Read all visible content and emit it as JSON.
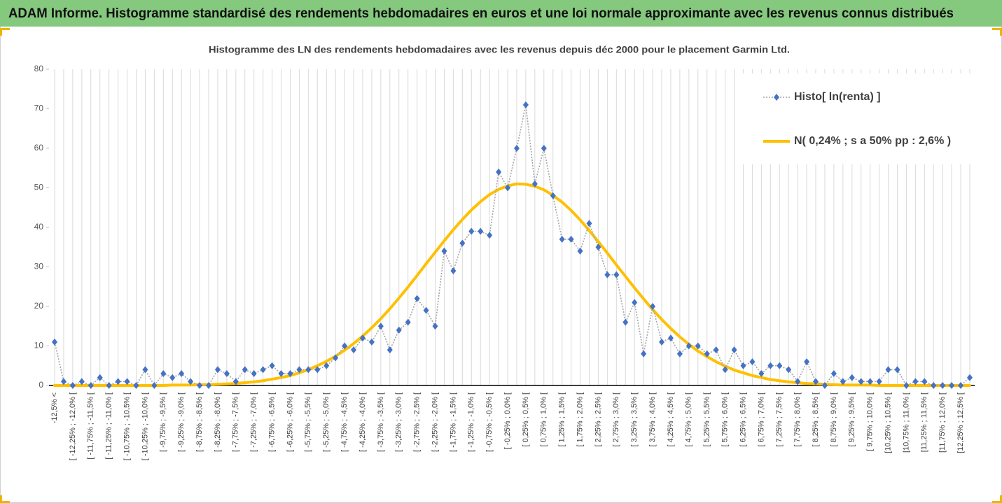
{
  "chart_data": {
    "type": "line",
    "title": "ADAM Informe. Histogramme standardisé des rendements hebdomadaires en euros et une loi normale approximante avec les revenus connus distribués",
    "subtitle": "Histogramme des LN des rendements hebdomadaires avec les revenus depuis déc 2000 pour le placement Garmin Ltd.",
    "categories": [
      "-12,5% <",
      null,
      "[ -12,25% ; -12,0% [",
      null,
      "[ -11,75% ; -11,5% [",
      null,
      "[ -11,25% ; -11,0% [",
      null,
      "[ -10,75% ; -10,5% [",
      null,
      "[ -10,25% ; -10,0% [",
      null,
      "[ -9,75% ; -9,5% [",
      null,
      "[ -9,25% ; -9,0% [",
      null,
      "[ -8,75% ; -8,5% [",
      null,
      "[ -8,25% ; -8,0% [",
      null,
      "[ -7,75% ; -7,5% [",
      null,
      "[ -7,25% ; -7,0% [",
      null,
      "[ -6,75% ; -6,5% [",
      null,
      "[ -6,25% ; -6,0% [",
      null,
      "[ -5,75% ; -5,5% [",
      null,
      "[ -5,25% ; -5,0% [",
      null,
      "[ -4,75% ; -4,5% [",
      null,
      "[ -4,25% ; -4,0% [",
      null,
      "[ -3,75% ; -3,5% [",
      null,
      "[ -3,25% ; -3,0% [",
      null,
      "[ -2,75% ; -2,5% [",
      null,
      "[ -2,25% ; -2,0% [",
      null,
      "[ -1,75% ; -1,5% [",
      null,
      "[ -1,25% ; -1,0% [",
      null,
      "[ -0,75% ; -0,5% [",
      null,
      "[ -0,25% ; 0,0% [",
      null,
      "[ 0,25% ; 0,5% [",
      null,
      "[ 0,75% ; 1,0% [",
      null,
      "[ 1,25% ; 1,5% [",
      null,
      "[ 1,75% ; 2,0% [",
      null,
      "[ 2,25% ; 2,5% [",
      null,
      "[ 2,75% ; 3,0% [",
      null,
      "[ 3,25% ; 3,5% [",
      null,
      "[ 3,75% ; 4,0% [",
      null,
      "[ 4,25% ; 4,5% [",
      null,
      "[ 4,75% ; 5,0% [",
      null,
      "[ 5,25% ; 5,5% [",
      null,
      "[ 5,75% ; 6,0% [",
      null,
      "[ 6,25% ; 6,5% [",
      null,
      "[ 6,75% ; 7,0% [",
      null,
      "[ 7,25% ; 7,5% [",
      null,
      "[ 7,75% ; 8,0% [",
      null,
      "[ 8,25% ; 8,5% [",
      null,
      "[ 8,75% ; 9,0% [",
      null,
      "[ 9,25% ; 9,5% [",
      null,
      "[ 9,75% ; 10,0% [",
      null,
      "[10,25% ; 10,5% [",
      null,
      "[10,75% ; 11,0% [",
      null,
      "[11,25% ; 11,5% [",
      null,
      "[11,75% ; 12,0% [",
      null,
      "[12,25% ; 12,5% [",
      null
    ],
    "series": [
      {
        "name": "Histo[ ln(renta) ]",
        "color": "#4472c4",
        "line_color": "#a5a5a5",
        "line_style": "dotted",
        "marker": "diamond",
        "values": [
          11,
          1,
          0,
          1,
          0,
          2,
          0,
          1,
          1,
          0,
          4,
          0,
          3,
          2,
          3,
          1,
          0,
          0,
          4,
          3,
          1,
          4,
          3,
          4,
          5,
          3,
          3,
          4,
          4,
          4,
          5,
          7,
          10,
          9,
          12,
          11,
          15,
          9,
          14,
          16,
          22,
          19,
          15,
          34,
          29,
          36,
          39,
          39,
          38,
          54,
          50,
          60,
          71,
          51,
          60,
          48,
          37,
          37,
          34,
          41,
          35,
          28,
          28,
          16,
          21,
          8,
          20,
          11,
          12,
          8,
          10,
          10,
          8,
          9,
          4,
          9,
          5,
          6,
          3,
          5,
          5,
          4,
          1,
          6,
          1,
          0,
          3,
          1,
          2,
          1,
          1,
          1,
          4,
          4,
          0,
          1,
          1,
          0,
          0,
          0,
          0,
          2
        ]
      },
      {
        "name": "N( 0,24% ; s a 50% pp : 2,6% )",
        "color": "#ffc000",
        "line_style": "solid",
        "marker": "none",
        "values": [
          0,
          0,
          0,
          0,
          0,
          0,
          0,
          0,
          0,
          0,
          0,
          0,
          0,
          0.1,
          0.1,
          0.1,
          0.2,
          0.2,
          0.3,
          0.4,
          0.5,
          0.7,
          0.9,
          1.2,
          1.6,
          2.0,
          2.5,
          3.2,
          4.0,
          5.0,
          6.1,
          7.4,
          8.9,
          10.6,
          12.5,
          14.6,
          16.9,
          19.4,
          22.1,
          24.9,
          27.8,
          30.8,
          33.7,
          36.6,
          39.4,
          42.0,
          44.4,
          46.5,
          48.3,
          49.6,
          50.5,
          51.0,
          50.9,
          50.4,
          49.5,
          48.1,
          46.4,
          44.3,
          41.9,
          39.2,
          36.4,
          33.5,
          30.5,
          27.6,
          24.7,
          21.9,
          19.2,
          16.7,
          14.4,
          12.3,
          10.4,
          8.7,
          7.3,
          6.0,
          4.9,
          3.9,
          3.2,
          2.5,
          2.0,
          1.5,
          1.2,
          0.9,
          0.7,
          0.5,
          0.4,
          0.3,
          0.2,
          0.1,
          0.1,
          0.1,
          0.1,
          0,
          0,
          0,
          0,
          0,
          0,
          0,
          0,
          0,
          0,
          0
        ]
      }
    ],
    "ylim": [
      0,
      80
    ],
    "yticks": [
      0,
      10,
      20,
      30,
      40,
      50,
      60,
      70,
      80
    ],
    "grid": "x",
    "legend": "top-right"
  }
}
